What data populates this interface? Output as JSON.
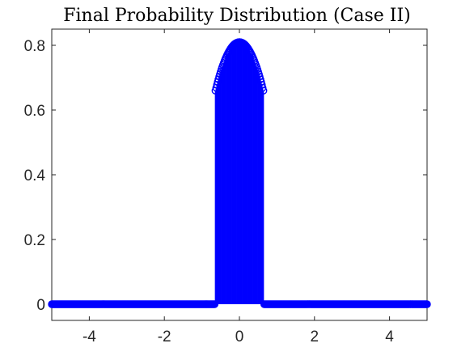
{
  "chart_data": {
    "type": "stem",
    "title": "Final Probability Distribution (Case II)",
    "xlabel": "",
    "ylabel": "",
    "xlim": [
      -5,
      5
    ],
    "ylim": [
      -0.05,
      0.85
    ],
    "x_ticks": [
      -4,
      -2,
      0,
      2,
      4
    ],
    "x_tick_labels": [
      "-4",
      "-2",
      "0",
      "2",
      "4"
    ],
    "y_ticks": [
      0,
      0.2,
      0.4,
      0.6,
      0.8
    ],
    "y_tick_labels": [
      "0",
      "0.2",
      "0.4",
      "0.6",
      "0.8"
    ],
    "grid": false,
    "series": [
      {
        "color": "#0000ff",
        "marker": "circle-open",
        "points_description": "dense samples over x in [-5, 5]; y = 0 for |x| > 0.65, y follows a parabolic cap inside",
        "x_start": -5,
        "x_end": 5,
        "step": 0.02,
        "support": [
          -0.65,
          0.65
        ],
        "cap_peak": 0.81,
        "cap_edge_value": 0.655
      }
    ],
    "sample_points": [
      {
        "x": -0.65,
        "y": 0.655
      },
      {
        "x": -0.5,
        "y": 0.718
      },
      {
        "x": -0.3,
        "y": 0.777
      },
      {
        "x": 0,
        "y": 0.81
      },
      {
        "x": 0.3,
        "y": 0.777
      },
      {
        "x": 0.5,
        "y": 0.718
      },
      {
        "x": 0.65,
        "y": 0.655
      }
    ]
  }
}
